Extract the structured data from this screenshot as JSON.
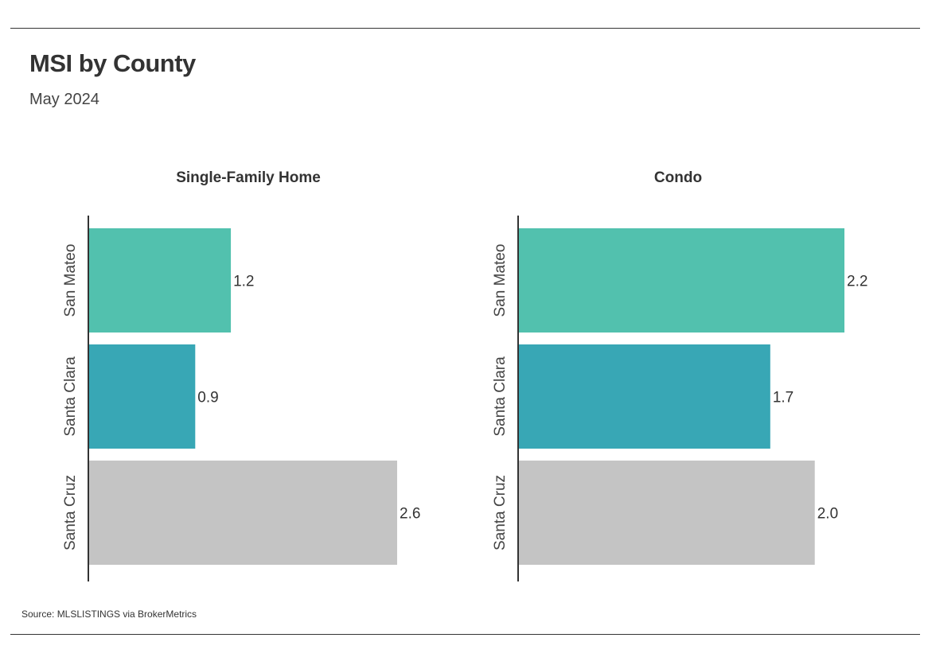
{
  "title": "MSI by County",
  "subtitle": "May 2024",
  "source": "Source:  MLSLISTINGS via BrokerMetrics",
  "colors": {
    "San Mateo": "#52c1ae",
    "Santa Clara": "#38a7b5",
    "Santa Cruz": "#c4c4c4"
  },
  "chart_data": [
    {
      "type": "bar",
      "orientation": "horizontal",
      "title": "Single-Family Home",
      "categories": [
        "San Mateo",
        "Santa Clara",
        "Santa Cruz"
      ],
      "values": [
        1.2,
        0.9,
        2.6
      ],
      "value_labels": [
        "1.2",
        "0.9",
        "2.6"
      ],
      "xlim": [
        0,
        2.6
      ],
      "grid": false
    },
    {
      "type": "bar",
      "orientation": "horizontal",
      "title": "Condo",
      "categories": [
        "San Mateo",
        "Santa Clara",
        "Santa Cruz"
      ],
      "values": [
        2.2,
        1.7,
        2.0
      ],
      "value_labels": [
        "2.2",
        "1.7",
        "2.0"
      ],
      "xlim": [
        0,
        2.2
      ],
      "grid": false
    }
  ]
}
